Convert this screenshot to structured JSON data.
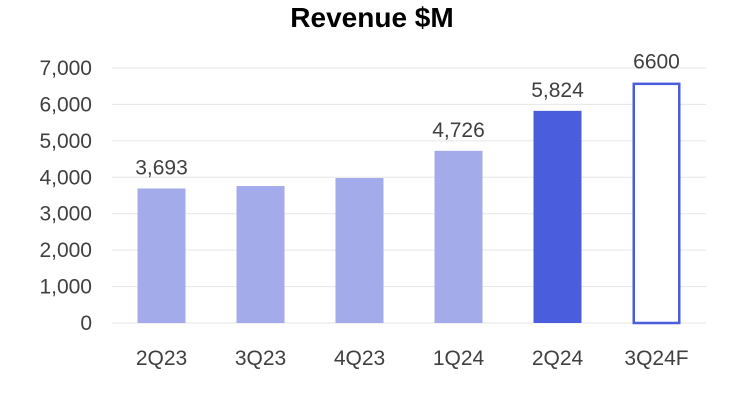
{
  "chart_data": {
    "type": "bar",
    "title": "Revenue $M",
    "xlabel": "",
    "ylabel": "",
    "ylim": [
      0,
      7000
    ],
    "yticks": [
      0,
      1000,
      2000,
      3000,
      4000,
      5000,
      6000,
      7000
    ],
    "ytick_labels": [
      "0",
      "1,000",
      "2,000",
      "3,000",
      "4,000",
      "5,000",
      "6,000",
      "7,000"
    ],
    "categories": [
      "2Q23",
      "3Q23",
      "4Q23",
      "1Q24",
      "2Q24",
      "3Q24F"
    ],
    "values": [
      3693,
      3760,
      3980,
      4726,
      5824,
      6600
    ],
    "data_labels": [
      "3,693",
      "",
      "",
      "4,726",
      "5,824",
      "6600"
    ],
    "bar_styles": [
      "light",
      "light",
      "light",
      "light",
      "highlight",
      "outline"
    ],
    "grid": true,
    "colors": {
      "light": "#a3abeb",
      "highlight": "#4a5ddc",
      "outline": "#4a5ddc"
    }
  }
}
